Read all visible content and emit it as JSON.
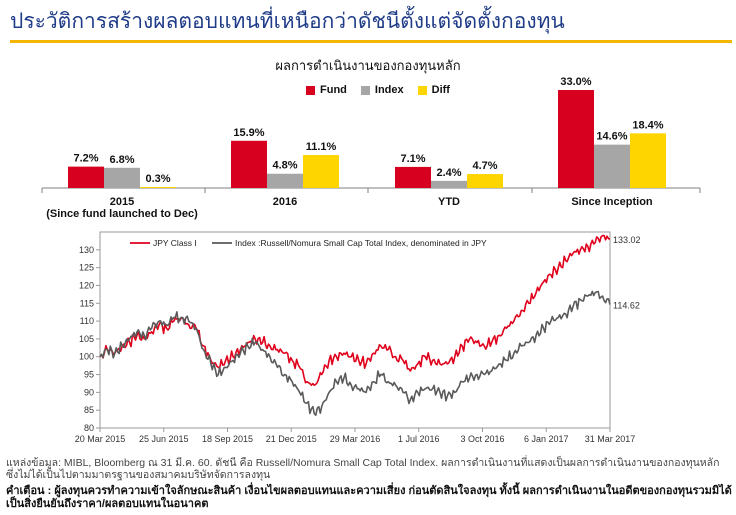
{
  "page": {
    "title": "ประวัติการสร้างผลตอบแทนที่เหนือกว่าดัชนีตั้งแต่จัดตั้งกองทุน",
    "accent_color": "#f3b600",
    "title_color": "#1f3c88"
  },
  "footer": {
    "source": "แหล่งข้อมูล: MIBL, Bloomberg ณ 31 มี.ค. 60. ดัชนี คือ Russell/Nomura Small Cap Total Index. ผลการดำเนินงานที่แสดงเป็นผลการดำเนินงานของกองทุนหลัก ซึ่งไม่ได้เป็นไปตามมาตรฐานของสมาคมบริษัทจัดการลงทุน",
    "warning": "คำเตือน : ผู้ลงทุนควรทำความเข้าใจลักษณะสินค้า เงื่อนไขผลตอบแทนและความเสี่ยง ก่อนตัดสินใจลงทุน ทั้งนี้ ผลการดำเนินงานในอดีตของกองทุนรวมมิได้เป็นสิ่งยืนยันถึงราคา/ผลตอบแทนในอนาคต"
  },
  "chart_data": [
    {
      "type": "bar",
      "title": "ผลการดำเนินงานของกองทุนหลัก",
      "categories": [
        "2015",
        "2016",
        "YTD",
        "Since Inception"
      ],
      "category_sublabels": [
        "(Since fund launched to Dec)",
        "",
        "",
        ""
      ],
      "series": [
        {
          "name": "Fund",
          "color": "#d7001e",
          "values": [
            7.2,
            15.9,
            7.1,
            33.0
          ],
          "labels": [
            "7.2%",
            "15.9%",
            "7.1%",
            "33.0%"
          ]
        },
        {
          "name": "Index",
          "color": "#a6a6a6",
          "values": [
            6.8,
            4.8,
            2.4,
            14.6
          ],
          "labels": [
            "6.8%",
            "4.8%",
            "2.4%",
            "14.6%"
          ]
        },
        {
          "name": "Diff",
          "color": "#ffd500",
          "values": [
            0.3,
            11.1,
            4.7,
            18.4
          ],
          "labels": [
            "0.3%",
            "11.1%",
            "4.7%",
            "18.4%"
          ]
        }
      ],
      "ylim": [
        0,
        33
      ]
    },
    {
      "type": "line",
      "x_ticks": [
        "20 Mar 2015",
        "25 Jun 2015",
        "18 Sep 2015",
        "21 Dec 2015",
        "29 Mar 2016",
        "1 Jul 2016",
        "3 Oct 2016",
        "6 Jan 2017",
        "31 Mar 2017"
      ],
      "ylim": [
        80,
        135
      ],
      "y_ticks": [
        80,
        85,
        90,
        95,
        100,
        105,
        110,
        115,
        120,
        125,
        130
      ],
      "series": [
        {
          "name": "JPY Class I",
          "color": "#e0001b",
          "end_label": "133.02",
          "values": [
            100,
            102,
            101,
            103,
            104,
            106,
            105,
            107,
            109,
            108,
            110,
            111,
            109,
            108,
            103,
            99,
            97,
            99,
            100,
            102,
            104,
            105,
            104,
            103,
            102,
            101,
            99,
            97,
            93,
            92,
            95,
            99,
            100,
            101,
            100,
            99,
            98,
            101,
            103,
            102,
            100,
            99,
            96,
            98,
            100,
            99,
            98,
            98,
            100,
            103,
            105,
            104,
            103,
            104,
            106,
            108,
            110,
            113,
            115,
            118,
            121,
            123,
            125,
            127,
            129,
            130,
            131,
            132,
            134,
            133.02
          ]
        },
        {
          "name": "Index :Russell/Nomura Small Cap Total Index, denominated in JPY",
          "color": "#5a5a5a",
          "end_label": "114.62",
          "values": [
            100,
            102,
            101,
            103,
            105,
            107,
            106,
            108,
            110,
            109,
            111,
            111,
            110,
            108,
            102,
            98,
            95,
            97,
            99,
            101,
            103,
            104,
            102,
            100,
            97,
            95,
            93,
            90,
            87,
            84,
            86,
            90,
            93,
            94,
            92,
            91,
            90,
            93,
            95,
            93,
            92,
            90,
            88,
            90,
            91,
            91,
            90,
            89,
            90,
            93,
            94,
            95,
            95,
            96,
            98,
            99,
            101,
            103,
            104,
            106,
            108,
            110,
            111,
            112,
            114,
            116,
            117,
            118,
            117,
            114.62
          ]
        }
      ]
    }
  ]
}
